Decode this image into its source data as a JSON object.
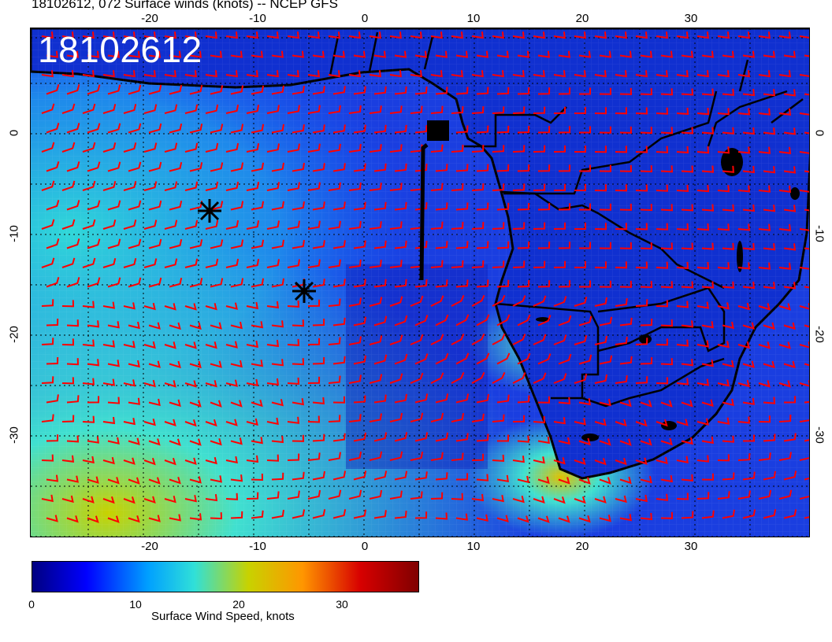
{
  "header": {
    "title": "18102612, 072 Surface winds (knots) -- NCEP GFS"
  },
  "map": {
    "stamp": "18102612",
    "lon_ticks_top": [
      "-20",
      "-10",
      "0",
      "10",
      "20",
      "30"
    ],
    "lon_ticks_bottom": [
      "-20",
      "-10",
      "0",
      "10",
      "20",
      "30"
    ],
    "lat_ticks_left": [
      "0",
      "-10",
      "-20",
      "-30"
    ],
    "lat_ticks_right": [
      "0",
      "-10",
      "-20",
      "-30"
    ],
    "barb_color": "#ff0000",
    "land_outline_color": "#000000"
  },
  "colorbar": {
    "ticks": [
      "0",
      "10",
      "20",
      "30"
    ],
    "label": "Surface Wind Speed, knots",
    "colors": [
      "#000080",
      "#0000ff",
      "#00c8ff",
      "#40e0d0",
      "#c8d200",
      "#ff9600",
      "#d70000",
      "#800000"
    ]
  }
}
